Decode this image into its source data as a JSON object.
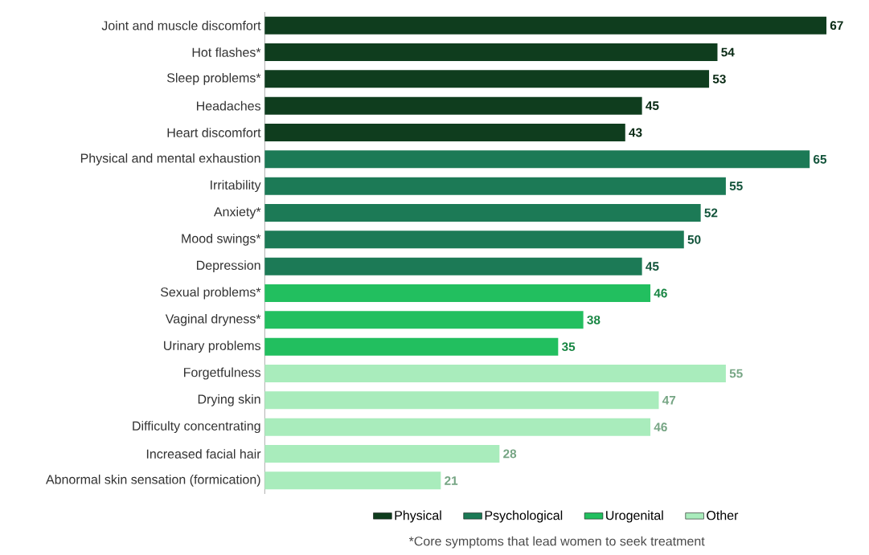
{
  "chart_data": {
    "type": "bar",
    "orientation": "horizontal",
    "data_labels": true,
    "legend": "bottom",
    "categories": [
      "Joint and muscle discomfort",
      "Hot flashes*",
      "Sleep problems*",
      "Headaches",
      "Heart discomfort",
      "Physical and mental exhaustion",
      "Irritability",
      "Anxiety*",
      "Mood swings*",
      "Depression",
      "Sexual problems*",
      "Vaginal dryness*",
      "Urinary problems",
      "Forgetfulness",
      "Drying skin",
      "Difficulty concentrating",
      "Increased facial hair",
      "Abnormal skin sensation (formication)"
    ],
    "series": [
      {
        "name": "Physical",
        "color": "#0f3d1e",
        "values": [
          67,
          54,
          53,
          45,
          43,
          null,
          null,
          null,
          null,
          null,
          null,
          null,
          null,
          null,
          null,
          null,
          null,
          null
        ]
      },
      {
        "name": "Psychological",
        "color": "#1c7a56",
        "values": [
          null,
          null,
          null,
          null,
          null,
          65,
          55,
          52,
          50,
          45,
          null,
          null,
          null,
          null,
          null,
          null,
          null,
          null
        ]
      },
      {
        "name": "Urogenital",
        "color": "#22bf5f",
        "values": [
          null,
          null,
          null,
          null,
          null,
          null,
          null,
          null,
          null,
          null,
          46,
          38,
          35,
          null,
          null,
          null,
          null,
          null
        ]
      },
      {
        "name": "Other",
        "color": "#a9ecbc",
        "values": [
          null,
          null,
          null,
          null,
          null,
          null,
          null,
          null,
          null,
          null,
          null,
          null,
          null,
          55,
          47,
          46,
          28,
          21
        ]
      }
    ],
    "annotations": [
      "*Core symptoms that lead women to seek treatment"
    ]
  }
}
